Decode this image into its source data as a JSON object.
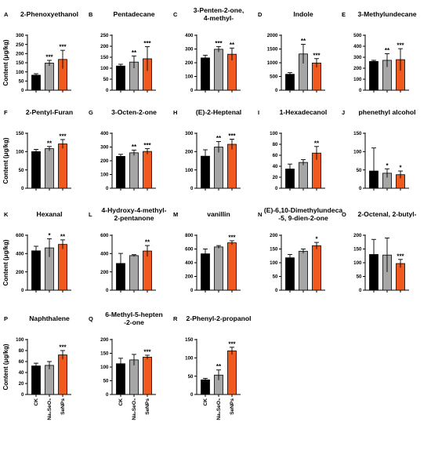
{
  "colors": {
    "CK": "#000000",
    "Na2SeO3": "#a6a6a6",
    "SeNPs": "#f05a1e"
  },
  "y_axis_label": "Content (μg/kg)",
  "groups": [
    "CK",
    "Na₂SeO₃",
    "SeNPs"
  ],
  "chart_data": [
    {
      "type": "bar",
      "panel": "A",
      "title": [
        "2-Phenoxyethanol"
      ],
      "categories": [
        "CK",
        "Na₂SeO₃",
        "SeNPs"
      ],
      "values": [
        82,
        148,
        168
      ],
      "errors": [
        8,
        15,
        50
      ],
      "stars": [
        "",
        "***",
        "***"
      ],
      "ylim": [
        0,
        300
      ],
      "yticks": [
        0,
        50,
        100,
        150,
        200,
        250,
        300
      ]
    },
    {
      "type": "bar",
      "panel": "B",
      "title": [
        "Pentadecane"
      ],
      "categories": [
        "CK",
        "Na₂SeO₃",
        "SeNPs"
      ],
      "values": [
        110,
        128,
        143
      ],
      "errors": [
        8,
        28,
        55
      ],
      "stars": [
        "",
        "**",
        "***"
      ],
      "ylim": [
        0,
        250
      ],
      "yticks": [
        0,
        50,
        100,
        150,
        200,
        250
      ]
    },
    {
      "type": "bar",
      "panel": "C",
      "title": [
        "3-Penten-2-one,",
        "4-methyl-"
      ],
      "categories": [
        "CK",
        "Na₂SeO₃",
        "SeNPs"
      ],
      "values": [
        235,
        298,
        262
      ],
      "errors": [
        20,
        20,
        45
      ],
      "stars": [
        "",
        "***",
        "**"
      ],
      "ylim": [
        0,
        400
      ],
      "yticks": [
        0,
        100,
        200,
        300,
        400
      ]
    },
    {
      "type": "bar",
      "panel": "D",
      "title": [
        "Indole"
      ],
      "categories": [
        "CK",
        "Na₂SeO₃",
        "SeNPs"
      ],
      "values": [
        580,
        1320,
        990
      ],
      "errors": [
        60,
        350,
        160
      ],
      "stars": [
        "",
        "**",
        "***"
      ],
      "ylim": [
        0,
        2000
      ],
      "yticks": [
        0,
        500,
        1000,
        1500,
        2000
      ]
    },
    {
      "type": "bar",
      "panel": "E",
      "title": [
        "3-Methylundecane"
      ],
      "categories": [
        "CK",
        "Na₂SeO₃",
        "SeNPs"
      ],
      "values": [
        262,
        272,
        278
      ],
      "errors": [
        10,
        60,
        100
      ],
      "stars": [
        "",
        "**",
        "***"
      ],
      "ylim": [
        0,
        500
      ],
      "yticks": [
        0,
        100,
        200,
        300,
        400,
        500
      ]
    },
    {
      "type": "bar",
      "panel": "F",
      "title": [
        "2-Pentyl-Furan"
      ],
      "categories": [
        "CK",
        "Na₂SeO₃",
        "SeNPs"
      ],
      "values": [
        100,
        108,
        121
      ],
      "errors": [
        6,
        6,
        12
      ],
      "stars": [
        "",
        "**",
        "***"
      ],
      "ylim": [
        0,
        150
      ],
      "yticks": [
        0,
        50,
        100,
        150
      ]
    },
    {
      "type": "bar",
      "panel": "G",
      "title": [
        "3-Octen-2-one"
      ],
      "categories": [
        "CK",
        "Na₂SeO₃",
        "SeNPs"
      ],
      "values": [
        232,
        258,
        268
      ],
      "errors": [
        15,
        20,
        20
      ],
      "stars": [
        "",
        "**",
        "***"
      ],
      "ylim": [
        0,
        400
      ],
      "yticks": [
        0,
        100,
        200,
        300,
        400
      ]
    },
    {
      "type": "bar",
      "panel": "H",
      "title": [
        "(E)-2-Heptenal"
      ],
      "categories": [
        "CK",
        "Na₂SeO₃",
        "SeNPs"
      ],
      "values": [
        175,
        225,
        240
      ],
      "errors": [
        35,
        30,
        28
      ],
      "stars": [
        "",
        "**",
        "***"
      ],
      "ylim": [
        0,
        300
      ],
      "yticks": [
        0,
        100,
        200,
        300
      ]
    },
    {
      "type": "bar",
      "panel": "I",
      "title": [
        "1-Hexadecanol"
      ],
      "categories": [
        "CK",
        "Na₂SeO₃",
        "SeNPs"
      ],
      "values": [
        35,
        47,
        64
      ],
      "errors": [
        9,
        5,
        12
      ],
      "stars": [
        "",
        "",
        "**"
      ],
      "ylim": [
        0,
        100
      ],
      "yticks": [
        0,
        20,
        40,
        60,
        80,
        100
      ]
    },
    {
      "type": "bar",
      "panel": "J",
      "title": [
        "phenethyl alcohol"
      ],
      "categories": [
        "CK",
        "Na₂SeO₃",
        "SeNPs"
      ],
      "values": [
        47,
        41,
        37
      ],
      "errors": [
        63,
        12,
        10
      ],
      "stars": [
        "",
        "*",
        "*"
      ],
      "ylim": [
        0,
        150
      ],
      "yticks": [
        0,
        50,
        100,
        150
      ]
    },
    {
      "type": "bar",
      "panel": "K",
      "title": [
        "Hexanal"
      ],
      "categories": [
        "CK",
        "Na₂SeO₃",
        "SeNPs"
      ],
      "values": [
        430,
        462,
        500
      ],
      "errors": [
        50,
        100,
        50
      ],
      "stars": [
        "",
        "*",
        "**"
      ],
      "ylim": [
        0,
        600
      ],
      "yticks": [
        0,
        200,
        400,
        600
      ]
    },
    {
      "type": "bar",
      "panel": "L",
      "title": [
        "4-Hydroxy-4-methyl-",
        "2-pentanone"
      ],
      "categories": [
        "CK",
        "Na₂SeO₃",
        "SeNPs"
      ],
      "values": [
        292,
        378,
        428
      ],
      "errors": [
        110,
        10,
        60
      ],
      "stars": [
        "",
        "",
        "**"
      ],
      "ylim": [
        0,
        600
      ],
      "yticks": [
        0,
        200,
        400,
        600
      ]
    },
    {
      "type": "bar",
      "panel": "M",
      "title": [
        "vanillin"
      ],
      "categories": [
        "CK",
        "Na₂SeO₃",
        "SeNPs"
      ],
      "values": [
        530,
        630,
        690
      ],
      "errors": [
        70,
        20,
        30
      ],
      "stars": [
        "",
        "",
        "***"
      ],
      "ylim": [
        0,
        800
      ],
      "yticks": [
        0,
        200,
        400,
        600,
        800
      ]
    },
    {
      "type": "bar",
      "panel": "N",
      "title": [
        "(E)-6,10-Dimethylundeca",
        "-5, 9-dien-2-one"
      ],
      "categories": [
        "CK",
        "Na₂SeO₃",
        "SeNPs"
      ],
      "values": [
        118,
        142,
        162
      ],
      "errors": [
        12,
        8,
        12
      ],
      "stars": [
        "",
        "",
        "*"
      ],
      "ylim": [
        0,
        200
      ],
      "yticks": [
        0,
        50,
        100,
        150,
        200
      ]
    },
    {
      "type": "bar",
      "panel": "O",
      "title": [
        "2-Octenal, 2-butyl-"
      ],
      "categories": [
        "CK",
        "Na₂SeO₃",
        "SeNPs"
      ],
      "values": [
        130,
        128,
        97
      ],
      "errors": [
        55,
        62,
        15
      ],
      "stars": [
        "",
        "",
        "***"
      ],
      "ylim": [
        0,
        200
      ],
      "yticks": [
        0,
        50,
        100,
        150,
        200
      ]
    },
    {
      "type": "bar",
      "panel": "P",
      "title": [
        "Naphthalene"
      ],
      "categories": [
        "CK",
        "Na₂SeO₃",
        "SeNPs"
      ],
      "values": [
        52,
        53,
        72
      ],
      "errors": [
        5,
        7,
        8
      ],
      "stars": [
        "",
        "",
        "***"
      ],
      "ylim": [
        0,
        100
      ],
      "yticks": [
        0,
        20,
        40,
        60,
        80,
        100
      ]
    },
    {
      "type": "bar",
      "panel": "Q",
      "title": [
        "6-Methyl-5-hepten",
        "-2-one"
      ],
      "categories": [
        "CK",
        "Na₂SeO₃",
        "SeNPs"
      ],
      "values": [
        112,
        126,
        136
      ],
      "errors": [
        20,
        20,
        7
      ],
      "stars": [
        "",
        "",
        "***"
      ],
      "ylim": [
        0,
        200
      ],
      "yticks": [
        0,
        50,
        100,
        150,
        200
      ]
    },
    {
      "type": "bar",
      "panel": "R",
      "title": [
        "2-Phenyl-2-propanol"
      ],
      "categories": [
        "CK",
        "Na₂SeO₃",
        "SeNPs"
      ],
      "values": [
        40,
        53,
        119
      ],
      "errors": [
        4,
        14,
        10
      ],
      "stars": [
        "",
        "**",
        "***"
      ],
      "ylim": [
        0,
        150
      ],
      "yticks": [
        0,
        50,
        100,
        150
      ]
    }
  ]
}
